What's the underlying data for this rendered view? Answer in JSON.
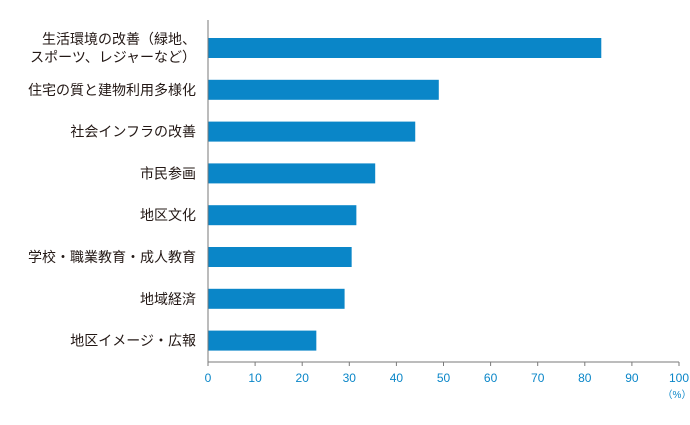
{
  "chart_data": {
    "type": "bar",
    "orientation": "horizontal",
    "categories": [
      [
        "生活環境の改善（緑地、",
        "スポーツ、レジャーなど）"
      ],
      [
        "住宅の質と建物利用多様化"
      ],
      [
        "社会インフラの改善"
      ],
      [
        "市民参画"
      ],
      [
        "地区文化"
      ],
      [
        "学校・職業教育・成人教育"
      ],
      [
        "地域経済"
      ],
      [
        "地区イメージ・広報"
      ]
    ],
    "values": [
      83.5,
      49,
      44,
      35.5,
      31.5,
      30.5,
      29,
      23
    ],
    "xlim": [
      0,
      100
    ],
    "xticks": [
      0,
      10,
      20,
      30,
      40,
      50,
      60,
      70,
      80,
      90,
      100
    ],
    "xunit": "（%）",
    "title": "",
    "xlabel": "",
    "ylabel": "",
    "grid": false,
    "colors": {
      "bar": "#0a86c8",
      "axis": "#7a7a7a",
      "tick_text": "#0a86c8",
      "label_text": "#231815"
    }
  }
}
